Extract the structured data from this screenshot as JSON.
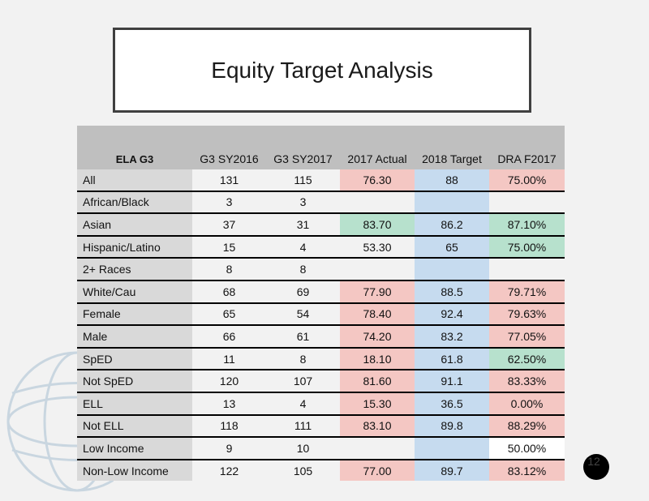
{
  "title": "Equity Target Analysis",
  "headers": [
    "ELA G3",
    "G3 SY2016",
    "G3 SY2017",
    "2017 Actual",
    "2018 Target",
    "DRA F2017"
  ],
  "rows": [
    {
      "label": "All",
      "sy2016": "131",
      "sy2017": "115",
      "actual": "76.30",
      "actual_status": "red",
      "target": "88",
      "dra": "75.00%",
      "dra_status": "red"
    },
    {
      "label": "African/Black",
      "sy2016": "3",
      "sy2017": "3",
      "actual": "",
      "actual_status": "plain",
      "target": "",
      "dra": "",
      "dra_status": "plain"
    },
    {
      "label": "Asian",
      "sy2016": "37",
      "sy2017": "31",
      "actual": "83.70",
      "actual_status": "green",
      "target": "86.2",
      "dra": "87.10%",
      "dra_status": "green"
    },
    {
      "label": "Hispanic/Latino",
      "sy2016": "15",
      "sy2017": "4",
      "actual": "53.30",
      "actual_status": "plain",
      "target": "65",
      "dra": "75.00%",
      "dra_status": "green"
    },
    {
      "label": "2+ Races",
      "sy2016": "8",
      "sy2017": "8",
      "actual": "",
      "actual_status": "plain",
      "target": "",
      "dra": "",
      "dra_status": "plain"
    },
    {
      "label": "White/Cau",
      "sy2016": "68",
      "sy2017": "69",
      "actual": "77.90",
      "actual_status": "red",
      "target": "88.5",
      "dra": "79.71%",
      "dra_status": "red"
    },
    {
      "label": "Female",
      "sy2016": "65",
      "sy2017": "54",
      "actual": "78.40",
      "actual_status": "red",
      "target": "92.4",
      "dra": "79.63%",
      "dra_status": "red"
    },
    {
      "label": "Male",
      "sy2016": "66",
      "sy2017": "61",
      "actual": "74.20",
      "actual_status": "red",
      "target": "83.2",
      "dra": "77.05%",
      "dra_status": "red"
    },
    {
      "label": "SpED",
      "sy2016": "11",
      "sy2017": "8",
      "actual": "18.10",
      "actual_status": "red",
      "target": "61.8",
      "dra": "62.50%",
      "dra_status": "green"
    },
    {
      "label": "Not SpED",
      "sy2016": "120",
      "sy2017": "107",
      "actual": "81.60",
      "actual_status": "red",
      "target": "91.1",
      "dra": "83.33%",
      "dra_status": "red"
    },
    {
      "label": "ELL",
      "sy2016": "13",
      "sy2017": "4",
      "actual": "15.30",
      "actual_status": "red",
      "target": "36.5",
      "dra": "0.00%",
      "dra_status": "red"
    },
    {
      "label": "Not ELL",
      "sy2016": "118",
      "sy2017": "111",
      "actual": "83.10",
      "actual_status": "red",
      "target": "89.8",
      "dra": "88.29%",
      "dra_status": "red"
    },
    {
      "label": "Low Income",
      "sy2016": "9",
      "sy2017": "10",
      "actual": "",
      "actual_status": "plain",
      "target": "",
      "dra": "50.00%",
      "dra_status": "white"
    },
    {
      "label": "Non-Low Income",
      "sy2016": "122",
      "sy2017": "105",
      "actual": "77.00",
      "actual_status": "red",
      "target": "89.7",
      "dra": "83.12%",
      "dra_status": "red"
    }
  ],
  "page_number": "12"
}
